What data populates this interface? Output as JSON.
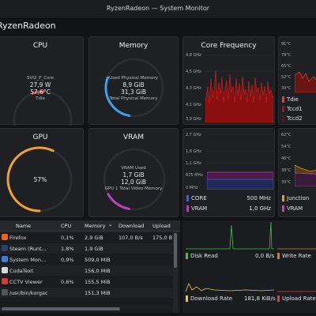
{
  "window": {
    "title": "RyzenRadeon — System Monitor"
  },
  "app": {
    "title": "RyzenRadeon"
  },
  "cpu": {
    "title": "CPU",
    "sensor": "SVI2_P_Core",
    "power": "27,9 W",
    "temp": "57,6°C",
    "sensor2": "Tdie",
    "arc_fraction": 0.06,
    "color": "#d84a4a"
  },
  "memory": {
    "title": "Memory",
    "label1": "Used Physical Memory",
    "used": "8,9 GiB",
    "total": "31,3 GiB",
    "label2": "Total Physical Memory",
    "arc_fraction": 0.28,
    "color": "#3aa0f0"
  },
  "core_freq": {
    "title": "Core Frequency",
    "ticks": [
      "4,8 GHz",
      "4,5 GHz",
      "4,3 GHz",
      "4,1 GHz",
      "3,9 GHz"
    ]
  },
  "temp_card": {
    "ticks": [
      "91°C",
      "78°C",
      "65°C",
      "52°C",
      "39°C"
    ],
    "legend": [
      "Tdie",
      "Tccd1",
      "Tccd2"
    ],
    "colors": [
      "#e03e3e",
      "#8b1f1f",
      "#5a1515"
    ]
  },
  "gpu": {
    "title": "GPU",
    "value": "57%",
    "arc_fraction": 0.57,
    "color": "#f0a030"
  },
  "vram": {
    "title": "VRAM",
    "label1": "VRAM Used",
    "used": "1,7 GiB",
    "total": "12,0 GiB",
    "label2": "GPU 1 Total Video Memory",
    "arc_fraction": 0.14,
    "color": "#c040c0"
  },
  "gpu_clock": {
    "ticks": [
      "2,7 GHz",
      "1,8 GHz",
      "1,1 GHz",
      "675 MHz",
      "0 MHz"
    ],
    "legend": [
      {
        "name": "CORE",
        "value": "500 MHz",
        "color": "#4060d0"
      },
      {
        "name": "VRAM",
        "value": "1,0 GHz",
        "color": "#b040b0"
      }
    ]
  },
  "gpu_temp": {
    "ticks": [
      "62°C",
      "54°C",
      "46°C",
      "38°C",
      "30°C"
    ],
    "legend": [
      "Junction",
      "VRAM"
    ],
    "colors": [
      "#e0a020",
      "#c040c0"
    ]
  },
  "process_table": {
    "headers": [
      "Name",
      "CPU",
      "Memory",
      "Download",
      "Upload"
    ],
    "sort_indicator": "⌄",
    "rows": [
      {
        "name": "Firefox",
        "cpu": "0,1%",
        "memory": "2,9 GiB",
        "download": "107,0 B/s",
        "upload": "175,0 B",
        "icon": "#e8651a"
      },
      {
        "name": "Steam (Runt...",
        "cpu": "1,8%",
        "memory": "1,9 GiB",
        "download": "",
        "upload": "",
        "icon": "#2a3f6a"
      },
      {
        "name": "System Mon...",
        "cpu": "0,9%",
        "memory": "509,0 MiB",
        "download": "",
        "upload": "",
        "icon": "#3b7dd8"
      },
      {
        "name": "CudaText",
        "cpu": "",
        "memory": "156,0 MiB",
        "download": "",
        "upload": "",
        "icon": "#d9d9d9"
      },
      {
        "name": "CCTV Viewer",
        "cpu": "0,6%",
        "memory": "155,5 MiB",
        "download": "",
        "upload": "",
        "icon": "#d33b3b"
      },
      {
        "name": "/usr/bin/korgac",
        "cpu": "",
        "memory": "151,3 MiB",
        "download": "",
        "upload": "",
        "icon": "#555555"
      }
    ]
  },
  "disk_net": {
    "disk_read": {
      "label": "Disk Read",
      "value": "0,0 B/s",
      "color": "#3ec23e"
    },
    "write_rate": {
      "label": "Write Rate",
      "color": "#e07a20"
    },
    "download": {
      "label": "Download Rate",
      "value": "181,8 KiB/s",
      "color": "#e0d020"
    },
    "upload": {
      "label": "Upload Rate",
      "color": "#e03e3e"
    }
  }
}
